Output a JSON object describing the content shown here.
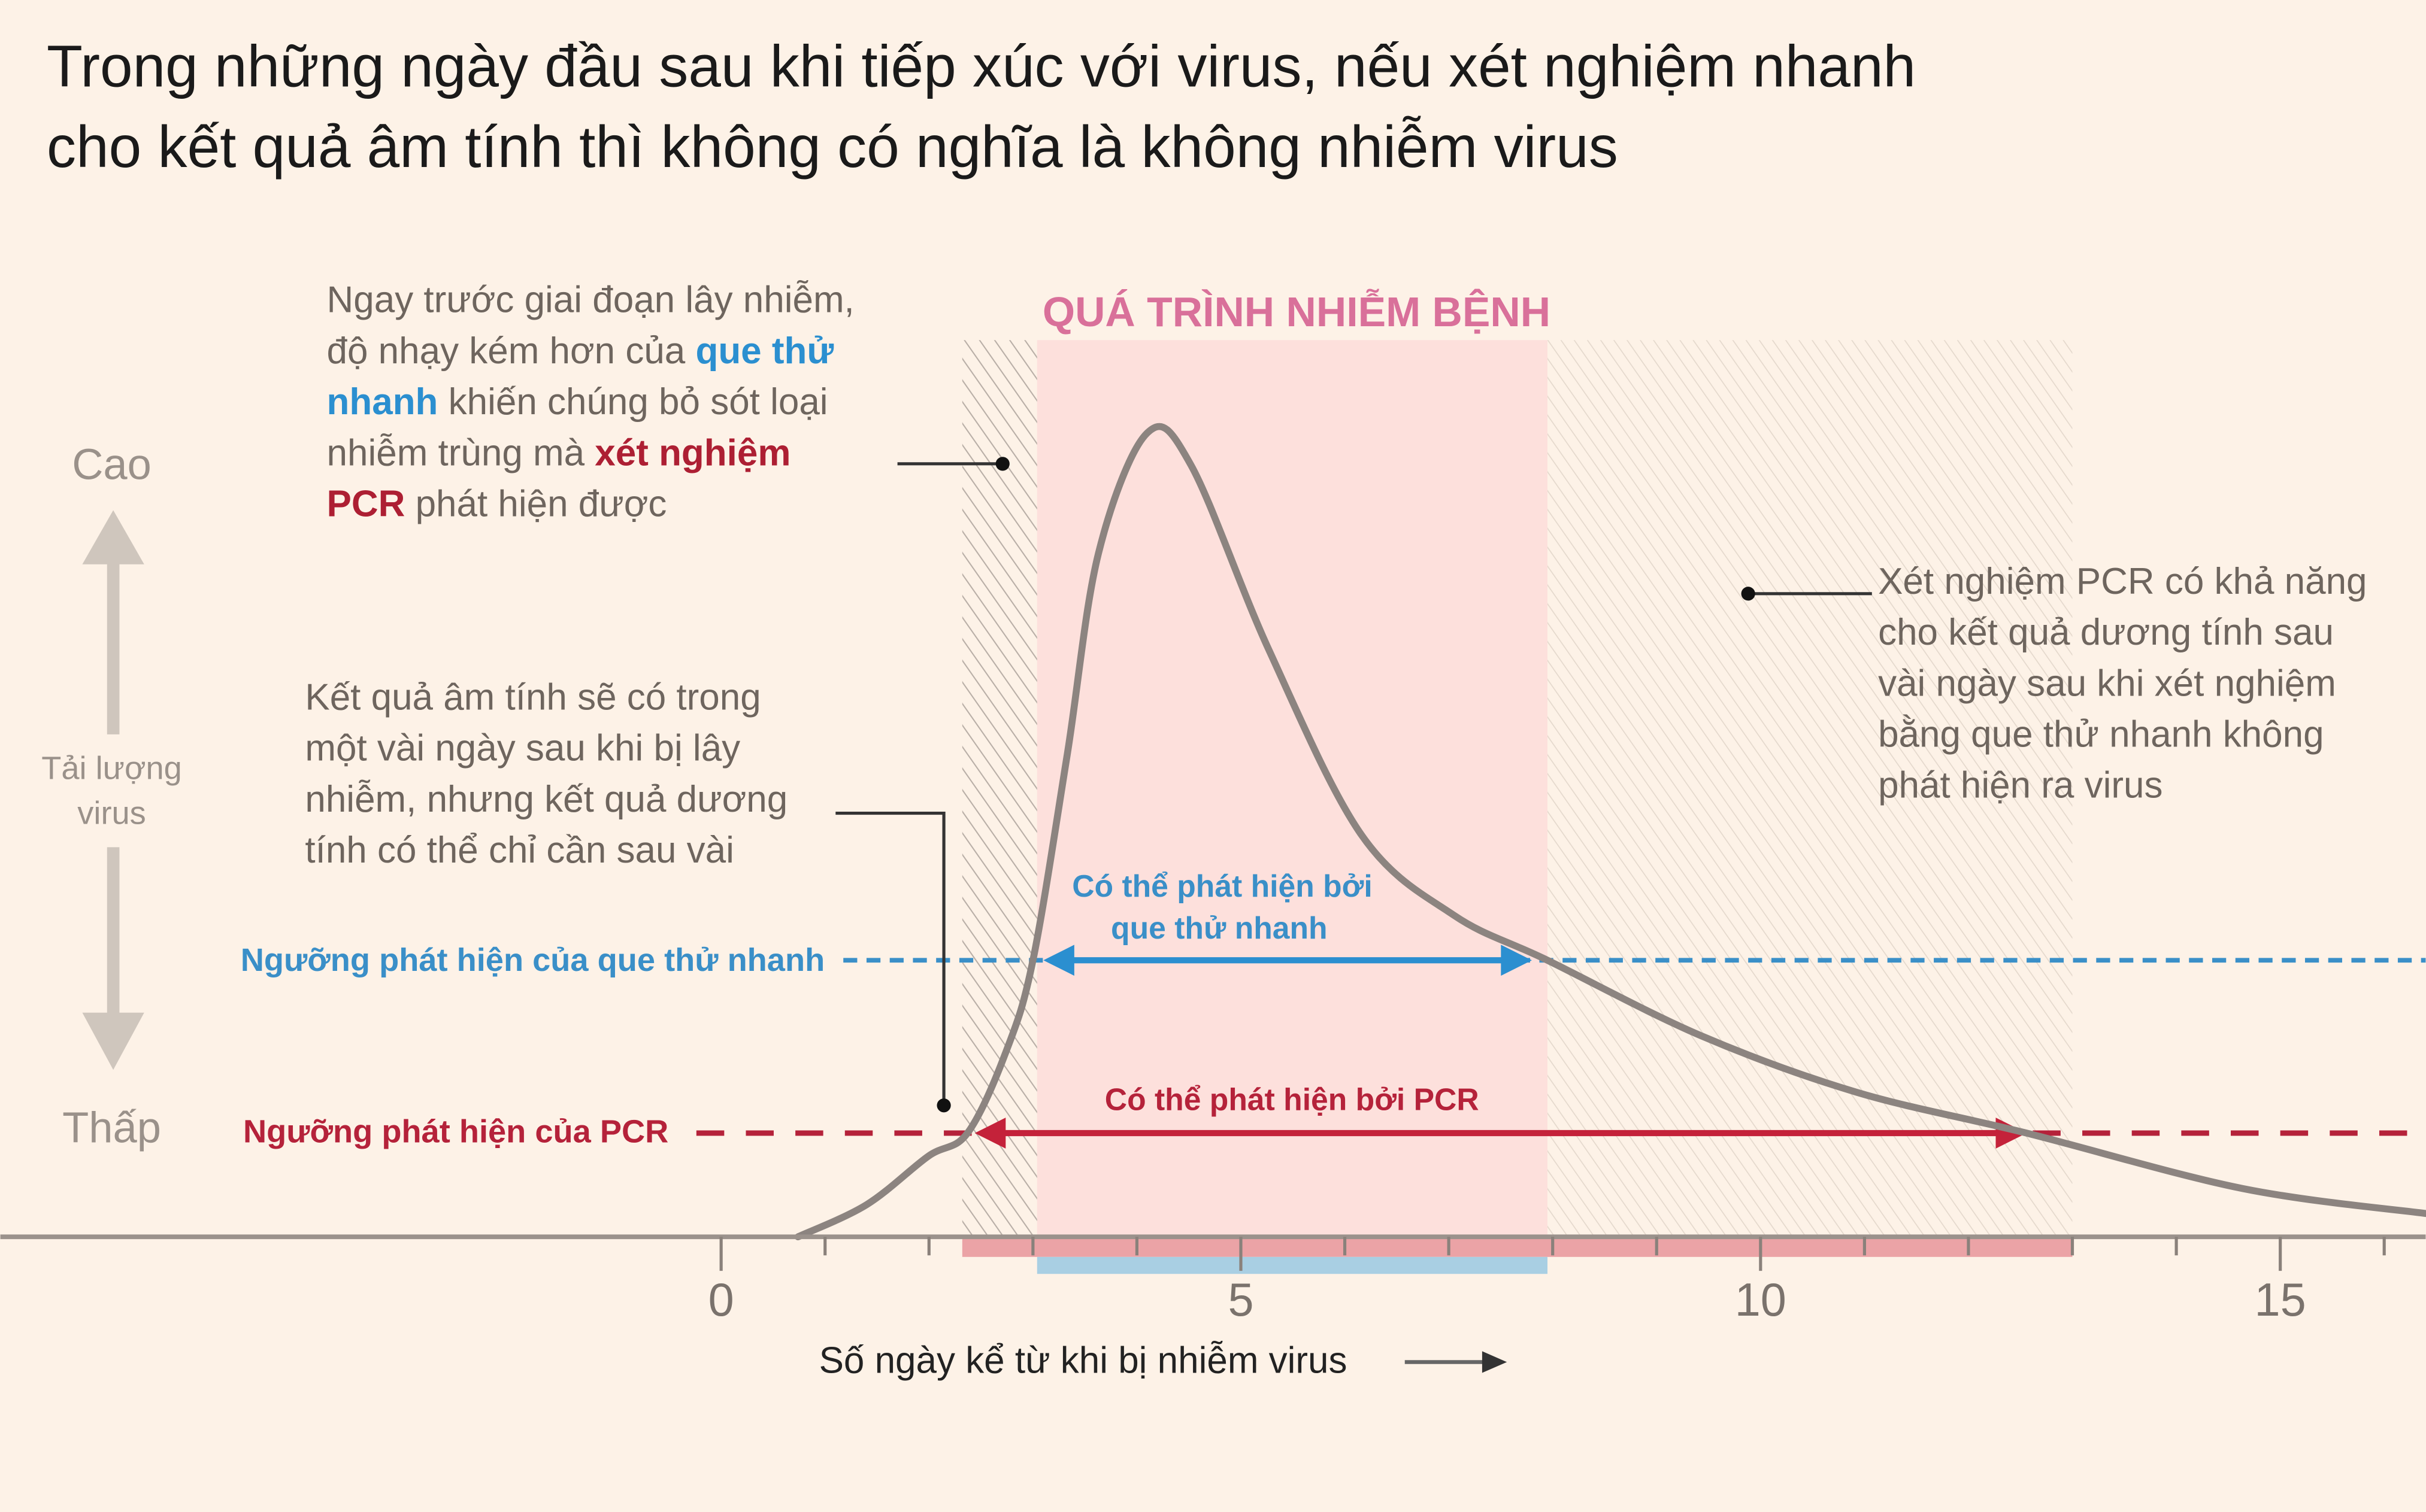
{
  "title": [
    "Trong những ngày đầu sau khi tiếp xúc với virus, nếu xét nghiệm nhanh",
    "cho kết quả âm tính thì không có nghĩa là không nhiễm virus"
  ],
  "colors": {
    "background": "#fdf2e7",
    "infection_region": "#fde0dc",
    "rapid": "#3a8fc8",
    "pcr": "#b5223a",
    "curve": "#8c8480",
    "phase_title": "#d9709a"
  },
  "annotations": {
    "before_infection": [
      [
        {
          "t": "Ngay trước giai đoạn lây nhiễm,"
        }
      ],
      [
        {
          "t": "độ nhạy kém hơn của "
        },
        {
          "t": "que thử",
          "style": "blue"
        }
      ],
      [
        {
          "t": "nhanh",
          "style": "blue"
        },
        {
          "t": " khiến chúng bỏ sót loại"
        }
      ],
      [
        {
          "t": "nhiễm trùng mà "
        },
        {
          "t": "xét nghiệm",
          "style": "red"
        }
      ],
      [
        {
          "t": "PCR",
          "style": "red"
        },
        {
          "t": " phát hiện được"
        }
      ]
    ],
    "negative_early": [
      "Kết quả âm tính sẽ có trong",
      "một vài ngày sau khi bị lây",
      "nhiễm, nhưng kết quả dương",
      "tính có thể chỉ cần sau vài"
    ],
    "pcr_later": [
      "Xét nghiệm PCR có khả năng",
      "cho kết quả dương tính sau",
      "vài ngày sau khi xét nghiệm",
      "bằng que thử nhanh không",
      "phát hiện ra virus"
    ]
  },
  "chart_data": {
    "type": "line",
    "title": "",
    "phase_label": "QUÁ TRÌNH NHIỄM BỆNH",
    "xlabel": "Số ngày kể từ khi bị nhiễm virus",
    "ylabel": [
      "Tải lượng",
      "virus"
    ],
    "y_high_label": "Cao",
    "y_low_label": "Thấp",
    "xlim": [
      -7,
      16.5
    ],
    "ylim": [
      0,
      1.05
    ],
    "x_ticks": [
      0,
      5,
      10,
      15
    ],
    "x_tick_labels": [
      "0",
      "5",
      "10",
      "15"
    ],
    "grid": false,
    "series": [
      {
        "x": [
          0.74,
          1.4,
          1.99,
          2.37,
          2.74,
          3.0,
          3.33,
          3.63,
          4.1,
          4.52,
          5.27,
          6.16,
          7.05,
          7.95,
          9.43,
          10.92,
          12.56,
          14.64,
          16.4
        ],
        "y": [
          0,
          0.04,
          0.1,
          0.129,
          0.23,
          0.344,
          0.6,
          0.85,
          1.0,
          0.96,
          0.73,
          0.5,
          0.4,
          0.344,
          0.25,
          0.18,
          0.129,
          0.06,
          0.029
        ]
      }
    ],
    "thresholds": {
      "rapid": {
        "label": "Ngưỡng phát hiện của que thử nhanh",
        "level": 0.344
      },
      "pcr": {
        "label": "Ngưỡng phát hiện của PCR",
        "level": 0.129
      }
    },
    "regions": {
      "pre_infectious_hatched": [
        2.32,
        3.04
      ],
      "infectious": [
        3.04,
        7.95
      ],
      "post_infectious_hatched": [
        7.95,
        13.0
      ]
    },
    "detection_ranges": {
      "rapid": {
        "label": [
          "Có thể phát hiện bởi",
          "que thử nhanh"
        ],
        "range": [
          3.1,
          7.8
        ]
      },
      "pcr": {
        "label": "Có thể phát hiện bởi PCR",
        "range": [
          2.44,
          12.56
        ]
      }
    }
  }
}
